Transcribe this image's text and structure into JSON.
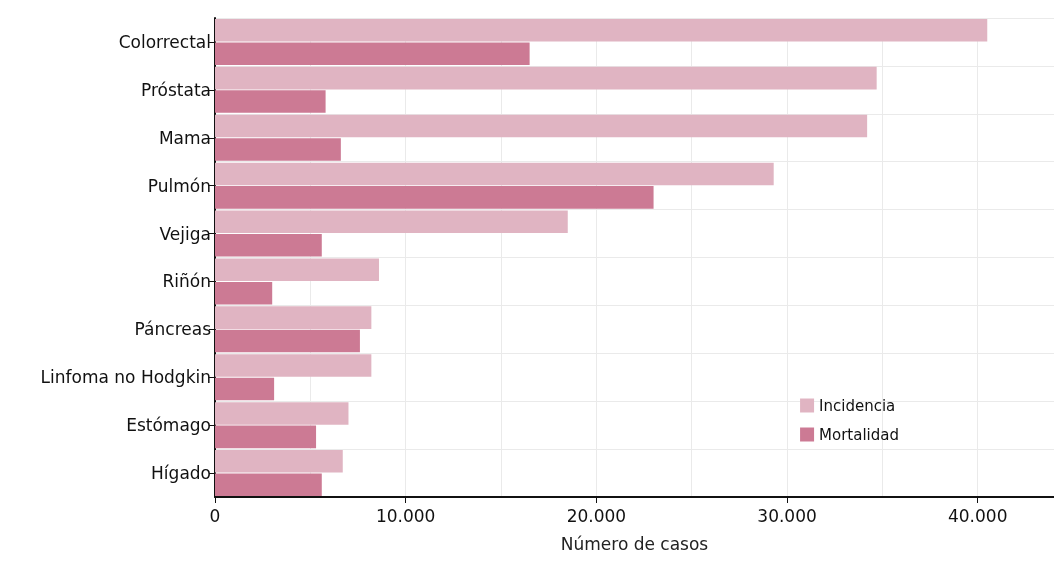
{
  "chart_data": {
    "type": "bar",
    "orientation": "horizontal",
    "xlabel": "Número de casos",
    "categories": [
      "Colorrectal",
      "Próstata",
      "Mama",
      "Pulmón",
      "Vejiga",
      "Riñón",
      "Páncreas",
      "Linfoma no Hodgkin",
      "Estómago",
      "Hígado"
    ],
    "series": [
      {
        "name": "Incidencia",
        "color": "#e0b4c2",
        "values": [
          40500,
          34700,
          34200,
          29300,
          18500,
          8600,
          8200,
          8200,
          7000,
          6700
        ]
      },
      {
        "name": "Mortalidad",
        "color": "#cc7a94",
        "values": [
          16500,
          5800,
          6600,
          23000,
          5600,
          3000,
          7600,
          3100,
          5300,
          5600
        ]
      }
    ],
    "xlim": [
      0,
      44000
    ],
    "xticks": [
      0,
      {
        "value": 5000,
        "label": null
      },
      {
        "value": 10000,
        "label": "10.000"
      },
      {
        "value": 15000,
        "label": null
      },
      {
        "value": 20000,
        "label": "20.000"
      },
      {
        "value": 25000,
        "label": null
      },
      {
        "value": 30000,
        "label": "30.000"
      },
      {
        "value": 35000,
        "label": null
      },
      {
        "value": 40000,
        "label": "40.000"
      }
    ],
    "grid": true,
    "legend": "bottom right"
  }
}
